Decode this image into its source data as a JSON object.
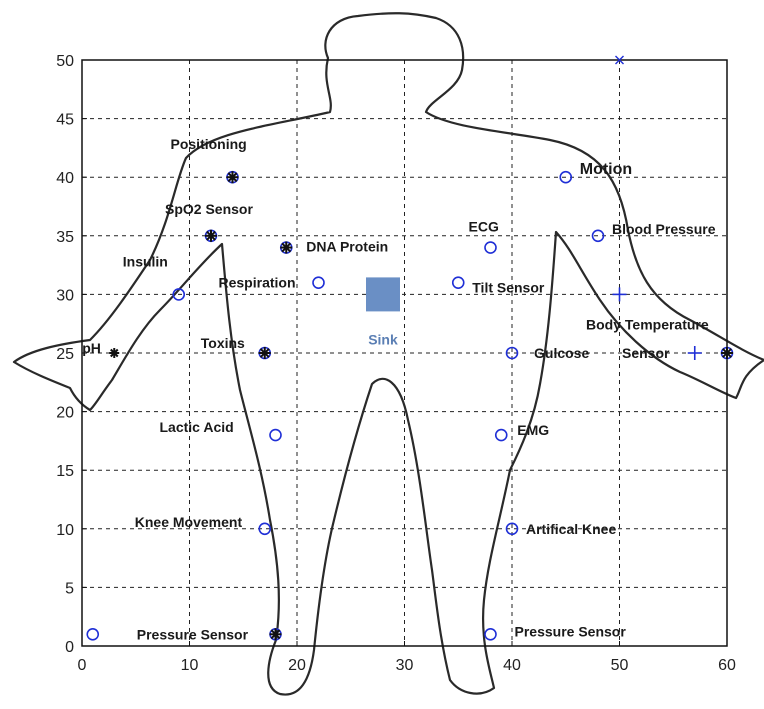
{
  "chart_data": {
    "type": "scatter",
    "title": "",
    "xlabel": "",
    "ylabel": "",
    "xlim": [
      0,
      60
    ],
    "ylim": [
      0,
      50
    ],
    "xticks": [
      0,
      10,
      20,
      30,
      40,
      50,
      60
    ],
    "yticks": [
      0,
      5,
      10,
      15,
      20,
      25,
      30,
      35,
      40,
      45,
      50
    ],
    "grid": true,
    "sink": {
      "label": "Sink",
      "x": 28,
      "y": 30,
      "color": "#6a8fc5"
    },
    "points": [
      {
        "label": "Positioning",
        "x": 14,
        "y": 40,
        "marker": "asterisk-circle"
      },
      {
        "label": "SpO2 Sensor",
        "x": 12,
        "y": 35,
        "marker": "asterisk-circle"
      },
      {
        "label": "DNA Protein",
        "x": 19,
        "y": 34,
        "marker": "asterisk-circle"
      },
      {
        "label": "Insulin",
        "x": 9,
        "y": 30,
        "marker": "circle"
      },
      {
        "label": "Respiration",
        "x": 22,
        "y": 31,
        "marker": "circle"
      },
      {
        "label": "pH",
        "x": 3,
        "y": 25,
        "marker": "asterisk"
      },
      {
        "label": "Toxins",
        "x": 17,
        "y": 25,
        "marker": "asterisk-circle"
      },
      {
        "label": "Lactic Acid",
        "x": 18,
        "y": 18,
        "marker": "circle"
      },
      {
        "label": "Knee Movement",
        "x": 17,
        "y": 10,
        "marker": "circle"
      },
      {
        "label": "Pressure Sensor",
        "x": 1,
        "y": 1,
        "marker": "circle"
      },
      {
        "label": "",
        "x": 18,
        "y": 1,
        "marker": "asterisk-circle"
      },
      {
        "label": "Motion",
        "x": 45,
        "y": 40,
        "marker": "circle"
      },
      {
        "label": "Blood Pressure",
        "x": 48,
        "y": 35,
        "marker": "circle"
      },
      {
        "label": "ECG",
        "x": 38,
        "y": 34,
        "marker": "circle"
      },
      {
        "label": "Tilt Sensor",
        "x": 35,
        "y": 31,
        "marker": "circle"
      },
      {
        "label": "",
        "x": 50,
        "y": 30,
        "marker": "plus"
      },
      {
        "label": "Body Temperature Sensor",
        "x": 57,
        "y": 25,
        "marker": "plus"
      },
      {
        "label": "",
        "x": 60,
        "y": 25,
        "marker": "asterisk-circle"
      },
      {
        "label": "Gulcose",
        "x": 40,
        "y": 25,
        "marker": "circle"
      },
      {
        "label": "EMG",
        "x": 39,
        "y": 18,
        "marker": "circle"
      },
      {
        "label": "Artifical Knee",
        "x": 40,
        "y": 10,
        "marker": "circle"
      },
      {
        "label": "Pressure Sensor",
        "x": 38,
        "y": 1,
        "marker": "circle"
      },
      {
        "label": "",
        "x": 50,
        "y": 50,
        "marker": "cross"
      }
    ],
    "colors": {
      "marker": "#1f2fd6",
      "dark": "#111111"
    }
  }
}
